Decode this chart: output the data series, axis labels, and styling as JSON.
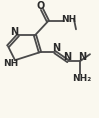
{
  "bg_color": "#faf8ef",
  "line_color": "#4a4a4a",
  "text_color": "#2a2a2a",
  "lw": 1.3,
  "fs": 6.5
}
